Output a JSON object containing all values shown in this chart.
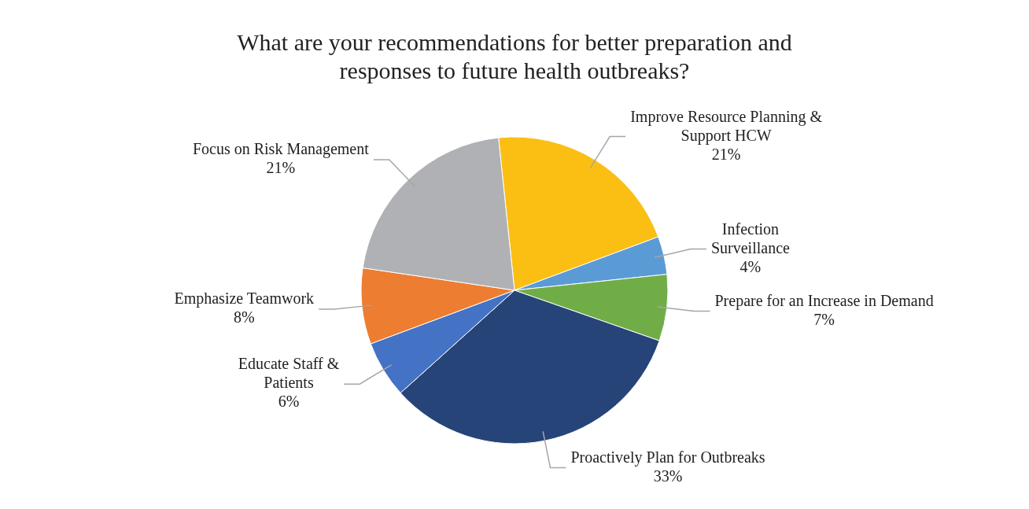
{
  "chart_data": {
    "type": "pie",
    "title": "What are your recommendations for better preparation and responses to future health outbreaks?",
    "categories": [
      "Improve Resource Planning & Support HCW",
      "Infection Surveillance",
      "Prepare for an Increase in Demand",
      "Proactively Plan for Outbreaks",
      "Educate Staff & Patients",
      "Emphasize Teamwork",
      "Focus on Risk Management"
    ],
    "values": [
      21,
      4,
      7,
      33,
      6,
      8,
      21
    ],
    "colors": [
      "#fbbf14",
      "#5b9bd5",
      "#70ad47",
      "#264478",
      "#4472c4",
      "#ed7d31",
      "#b0b1b4"
    ],
    "value_labels": [
      "21%",
      "4%",
      "7%",
      "33%",
      "6%",
      "8%",
      "21%"
    ],
    "legend": false
  }
}
